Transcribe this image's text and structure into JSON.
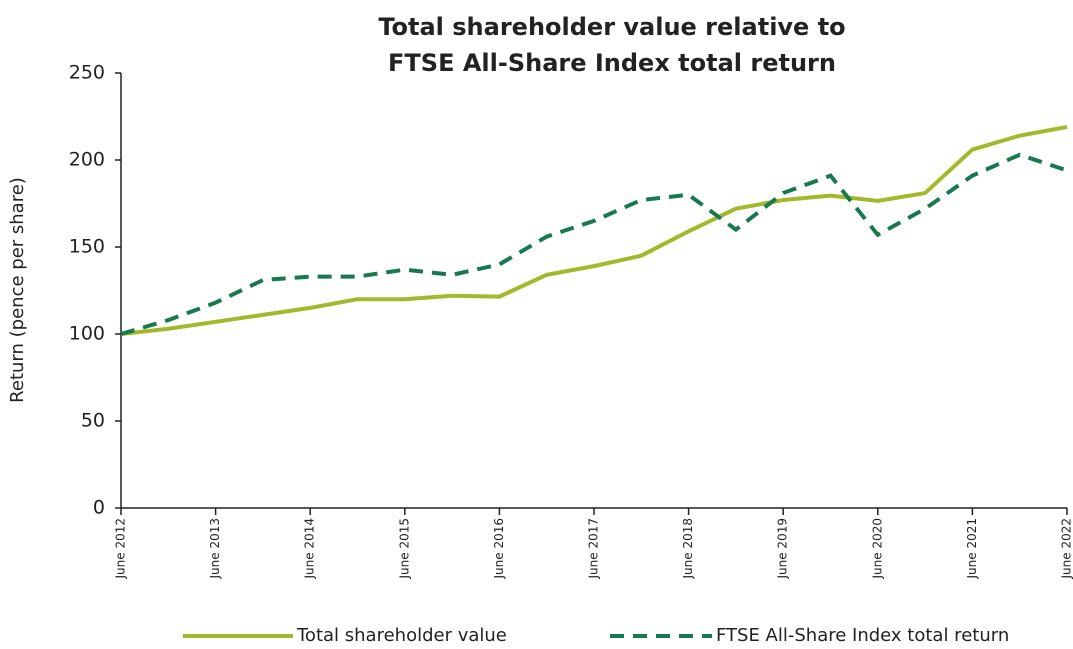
{
  "chart_data": {
    "type": "line",
    "title": [
      "Total shareholder value relative to",
      "FTSE All-Share Index total return"
    ],
    "y_label": "Return (pence per share)",
    "categories": [
      "June 2012",
      null,
      "June 2013",
      null,
      "June 2014",
      null,
      "June 2015",
      null,
      "June 2016",
      null,
      "June 2017",
      null,
      "June 2018",
      null,
      "June 2019",
      null,
      "June 2020",
      null,
      "June 2021",
      null,
      "June 2022"
    ],
    "series": [
      {
        "name": "Total shareholder value",
        "color": "#a4b82c",
        "dash": false,
        "values": [
          100,
          103,
          107,
          111,
          115,
          120,
          120,
          122,
          121.5,
          134,
          139,
          145,
          159,
          172,
          177,
          179.5,
          176.5,
          181,
          206,
          214,
          219
        ]
      },
      {
        "name": "FTSE All-Share Index total return",
        "color": "#18794e",
        "dash": true,
        "values": [
          100,
          108,
          118,
          131,
          133,
          133,
          137,
          134,
          140,
          156,
          165,
          177,
          180,
          160,
          181,
          191,
          157,
          172,
          191,
          203,
          194
        ]
      }
    ],
    "ylim": [
      0,
      250
    ],
    "yticks": [
      0,
      50,
      100,
      150,
      200,
      250
    ],
    "grid": false
  }
}
